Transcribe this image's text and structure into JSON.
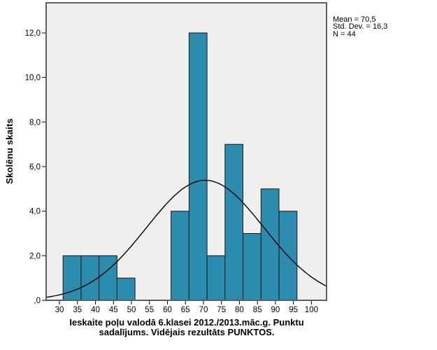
{
  "stats_box": {
    "line1": "Mean = 70,5",
    "line2": "Std. Dev. = 16,3",
    "line3": "N = 44"
  },
  "chart_data": {
    "type": "bar",
    "subtype": "histogram-with-normal-curve",
    "title": "",
    "ylabel": "Skolēnu skaits",
    "xlabel_line1": "Ieskaite poļu valodā 6.klasei 2012./2013.māc.g. Punktu",
    "xlabel_line2": "sadalījums. Vidējais rezultāts PUNKTOS.",
    "bin_width": 5,
    "bins": [
      {
        "x0": 31,
        "x1": 36,
        "count": 2
      },
      {
        "x0": 36,
        "x1": 41,
        "count": 2
      },
      {
        "x0": 41,
        "x1": 46,
        "count": 2
      },
      {
        "x0": 46,
        "x1": 51,
        "count": 1
      },
      {
        "x0": 61,
        "x1": 66,
        "count": 4
      },
      {
        "x0": 66,
        "x1": 71,
        "count": 12
      },
      {
        "x0": 71,
        "x1": 76,
        "count": 2
      },
      {
        "x0": 76,
        "x1": 81,
        "count": 7
      },
      {
        "x0": 81,
        "x1": 86,
        "count": 3
      },
      {
        "x0": 86,
        "x1": 91,
        "count": 5
      },
      {
        "x0": 91,
        "x1": 96,
        "count": 4
      }
    ],
    "x_ticks": [
      30,
      35,
      40,
      45,
      50,
      55,
      60,
      65,
      70,
      75,
      80,
      85,
      90,
      95,
      100
    ],
    "y_ticks": [
      {
        "v": 0,
        "label": ",0"
      },
      {
        "v": 2,
        "label": "2,0"
      },
      {
        "v": 4,
        "label": "4,0"
      },
      {
        "v": 6,
        "label": "6,0"
      },
      {
        "v": 8,
        "label": "8,0"
      },
      {
        "v": 10,
        "label": "10,0"
      },
      {
        "v": 12,
        "label": "12,0"
      }
    ],
    "xlim": [
      26.3,
      104.2
    ],
    "ylim": [
      0,
      13.35
    ],
    "grid": false,
    "legend": "none",
    "normal_curve": {
      "mean": 70.5,
      "std_dev": 16.3,
      "n": 44,
      "scale": 220
    },
    "colors": {
      "bar_fill": "#2b8cad",
      "bar_stroke": "#1a1a1a",
      "plot_bg": "#f0efed",
      "frame": "#5f5f5f",
      "curve": "#000000",
      "tick": "#000000",
      "text": "#000000",
      "page_bg": "#ffffff"
    }
  }
}
